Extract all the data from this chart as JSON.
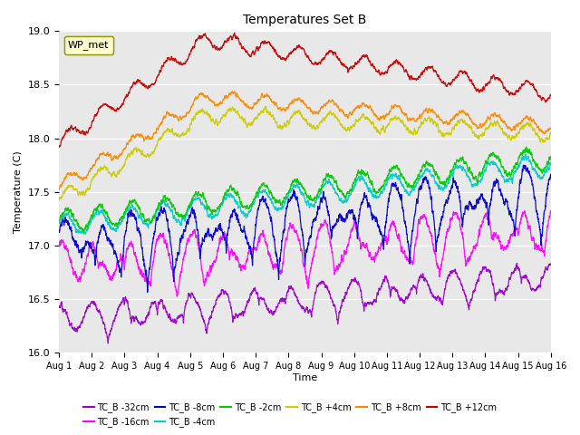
{
  "title": "Temperatures Set B",
  "xlabel": "Time",
  "ylabel": "Temperature (C)",
  "ylim": [
    16.0,
    19.0
  ],
  "yticks": [
    16.0,
    16.5,
    17.0,
    17.5,
    18.0,
    18.5,
    19.0
  ],
  "xtick_labels": [
    "Aug 1",
    "Aug 2",
    "Aug 3",
    "Aug 4",
    "Aug 5",
    "Aug 6",
    "Aug 7",
    "Aug 8",
    "Aug 9",
    "Aug 10",
    "Aug 11",
    "Aug 12",
    "Aug 13",
    "Aug 14",
    "Aug 15",
    "Aug 16"
  ],
  "legend_label": "WP_met",
  "series": [
    {
      "label": "TC_B -32cm",
      "color": "#9900cc"
    },
    {
      "label": "TC_B -16cm",
      "color": "#ff00ff"
    },
    {
      "label": "TC_B -8cm",
      "color": "#0000cc"
    },
    {
      "label": "TC_B -4cm",
      "color": "#00cccc"
    },
    {
      "label": "TC_B -2cm",
      "color": "#00cc00"
    },
    {
      "label": "TC_B +4cm",
      "color": "#cccc00"
    },
    {
      "label": "TC_B +8cm",
      "color": "#ff8800"
    },
    {
      "label": "TC_B +12cm",
      "color": "#cc0000"
    }
  ],
  "bg_color": "#e8e8e8",
  "legend_box_color": "#ffffcc",
  "legend_box_edge": "#888800",
  "n_points": 3600,
  "days": 15
}
